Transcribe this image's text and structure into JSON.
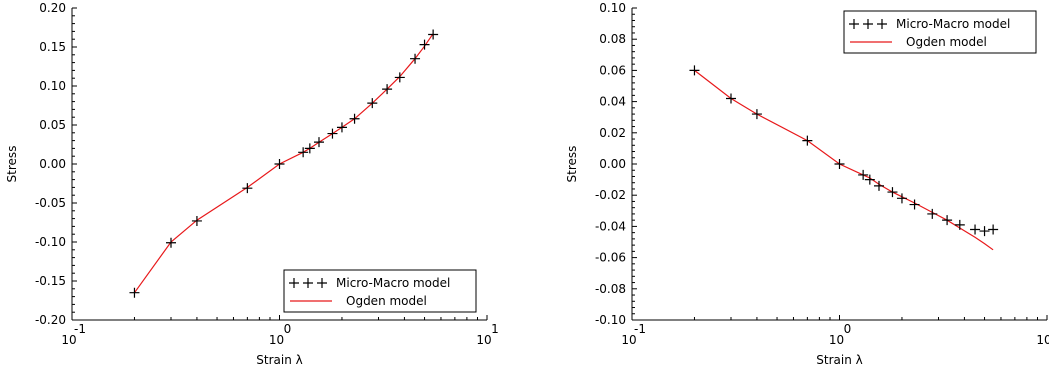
{
  "chart_data": [
    {
      "type": "line",
      "xlabel": "Strain λ",
      "ylabel": "Stress",
      "xscale": "log",
      "xlim": [
        0.1,
        10
      ],
      "ylim": [
        -0.2,
        0.2
      ],
      "x_tick_labels": [
        "10",
        "10",
        "10"
      ],
      "x_tick_exponents": [
        "-1",
        "0",
        "1"
      ],
      "y_ticks": [
        "-0.20",
        "-0.15",
        "-0.10",
        "-0.05",
        "0.00",
        "0.05",
        "0.10",
        "0.15",
        "0.20"
      ],
      "grid": false,
      "legend_position": "bottom-right",
      "series": [
        {
          "name": "Micro-Macro model",
          "style": "markers-plus",
          "color": "#000000",
          "x": [
            0.2,
            0.3,
            0.4,
            0.7,
            1.0,
            1.3,
            1.4,
            1.55,
            1.8,
            2.0,
            2.3,
            2.8,
            3.3,
            3.8,
            4.5,
            5.0,
            5.5
          ],
          "y": [
            -0.165,
            -0.101,
            -0.073,
            -0.031,
            0.0,
            0.015,
            0.02,
            0.028,
            0.039,
            0.047,
            0.058,
            0.078,
            0.096,
            0.111,
            0.135,
            0.153,
            0.166
          ]
        },
        {
          "name": "Ogden model",
          "style": "line",
          "color": "#e8191b",
          "x": [
            0.2,
            0.3,
            0.4,
            0.7,
            1.0,
            1.3,
            1.4,
            1.55,
            1.8,
            2.0,
            2.3,
            2.8,
            3.3,
            3.8,
            4.5,
            5.0,
            5.5
          ],
          "y": [
            -0.165,
            -0.1,
            -0.072,
            -0.03,
            0.0,
            0.015,
            0.02,
            0.028,
            0.039,
            0.047,
            0.058,
            0.078,
            0.096,
            0.112,
            0.135,
            0.151,
            0.167
          ]
        }
      ]
    },
    {
      "type": "line",
      "xlabel": "Strain λ",
      "ylabel": "Stress",
      "xscale": "log",
      "xlim": [
        0.1,
        10
      ],
      "ylim": [
        -0.1,
        0.1
      ],
      "x_tick_labels": [
        "10",
        "10",
        "10"
      ],
      "x_tick_exponents": [
        "-1",
        "0",
        "1"
      ],
      "y_ticks": [
        "-0.10",
        "-0.08",
        "-0.06",
        "-0.04",
        "-0.02",
        "0.00",
        "0.02",
        "0.04",
        "0.06",
        "0.08",
        "0.10"
      ],
      "grid": false,
      "legend_position": "top-right",
      "series": [
        {
          "name": "Micro-Macro model",
          "style": "markers-plus",
          "color": "#000000",
          "x": [
            0.2,
            0.3,
            0.4,
            0.7,
            1.0,
            1.3,
            1.4,
            1.55,
            1.8,
            2.0,
            2.3,
            2.8,
            3.3,
            3.8,
            4.5,
            5.0,
            5.5
          ],
          "y": [
            0.06,
            0.042,
            0.032,
            0.015,
            0.0,
            -0.007,
            -0.01,
            -0.014,
            -0.018,
            -0.022,
            -0.026,
            -0.032,
            -0.036,
            -0.039,
            -0.042,
            -0.043,
            -0.042
          ]
        },
        {
          "name": "Ogden model",
          "style": "line",
          "color": "#e8191b",
          "x": [
            0.2,
            0.3,
            0.4,
            0.7,
            1.0,
            1.3,
            1.4,
            1.55,
            1.8,
            2.0,
            2.3,
            2.8,
            3.3,
            3.8,
            4.5,
            5.0,
            5.5
          ],
          "y": [
            0.06,
            0.042,
            0.032,
            0.015,
            0.0,
            -0.007,
            -0.009,
            -0.013,
            -0.018,
            -0.021,
            -0.025,
            -0.031,
            -0.036,
            -0.041,
            -0.047,
            -0.051,
            -0.055
          ]
        }
      ]
    }
  ]
}
